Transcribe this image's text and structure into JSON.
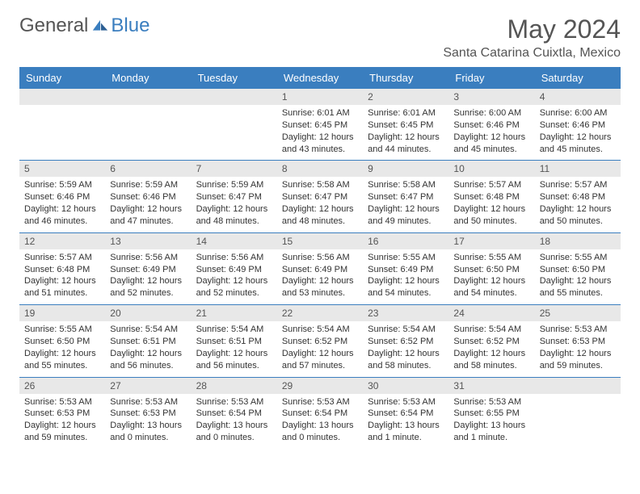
{
  "brand": {
    "part1": "General",
    "part2": "Blue"
  },
  "title": "May 2024",
  "location": "Santa Catarina Cuixtla, Mexico",
  "colors": {
    "accent": "#3a7ebf",
    "header_bg": "#3a7ebf",
    "daynum_bg": "#e8e8e8",
    "text": "#333333",
    "muted": "#555555",
    "background": "#ffffff"
  },
  "typography": {
    "base_family": "Arial",
    "title_size": 32,
    "location_size": 16,
    "header_size": 13,
    "daynum_size": 12,
    "data_size": 11
  },
  "weekdays": [
    "Sunday",
    "Monday",
    "Tuesday",
    "Wednesday",
    "Thursday",
    "Friday",
    "Saturday"
  ],
  "weeks": [
    [
      {
        "day": "",
        "sunrise": "",
        "sunset": "",
        "daylight": ""
      },
      {
        "day": "",
        "sunrise": "",
        "sunset": "",
        "daylight": ""
      },
      {
        "day": "",
        "sunrise": "",
        "sunset": "",
        "daylight": ""
      },
      {
        "day": "1",
        "sunrise": "Sunrise: 6:01 AM",
        "sunset": "Sunset: 6:45 PM",
        "daylight": "Daylight: 12 hours and 43 minutes."
      },
      {
        "day": "2",
        "sunrise": "Sunrise: 6:01 AM",
        "sunset": "Sunset: 6:45 PM",
        "daylight": "Daylight: 12 hours and 44 minutes."
      },
      {
        "day": "3",
        "sunrise": "Sunrise: 6:00 AM",
        "sunset": "Sunset: 6:46 PM",
        "daylight": "Daylight: 12 hours and 45 minutes."
      },
      {
        "day": "4",
        "sunrise": "Sunrise: 6:00 AM",
        "sunset": "Sunset: 6:46 PM",
        "daylight": "Daylight: 12 hours and 45 minutes."
      }
    ],
    [
      {
        "day": "5",
        "sunrise": "Sunrise: 5:59 AM",
        "sunset": "Sunset: 6:46 PM",
        "daylight": "Daylight: 12 hours and 46 minutes."
      },
      {
        "day": "6",
        "sunrise": "Sunrise: 5:59 AM",
        "sunset": "Sunset: 6:46 PM",
        "daylight": "Daylight: 12 hours and 47 minutes."
      },
      {
        "day": "7",
        "sunrise": "Sunrise: 5:59 AM",
        "sunset": "Sunset: 6:47 PM",
        "daylight": "Daylight: 12 hours and 48 minutes."
      },
      {
        "day": "8",
        "sunrise": "Sunrise: 5:58 AM",
        "sunset": "Sunset: 6:47 PM",
        "daylight": "Daylight: 12 hours and 48 minutes."
      },
      {
        "day": "9",
        "sunrise": "Sunrise: 5:58 AM",
        "sunset": "Sunset: 6:47 PM",
        "daylight": "Daylight: 12 hours and 49 minutes."
      },
      {
        "day": "10",
        "sunrise": "Sunrise: 5:57 AM",
        "sunset": "Sunset: 6:48 PM",
        "daylight": "Daylight: 12 hours and 50 minutes."
      },
      {
        "day": "11",
        "sunrise": "Sunrise: 5:57 AM",
        "sunset": "Sunset: 6:48 PM",
        "daylight": "Daylight: 12 hours and 50 minutes."
      }
    ],
    [
      {
        "day": "12",
        "sunrise": "Sunrise: 5:57 AM",
        "sunset": "Sunset: 6:48 PM",
        "daylight": "Daylight: 12 hours and 51 minutes."
      },
      {
        "day": "13",
        "sunrise": "Sunrise: 5:56 AM",
        "sunset": "Sunset: 6:49 PM",
        "daylight": "Daylight: 12 hours and 52 minutes."
      },
      {
        "day": "14",
        "sunrise": "Sunrise: 5:56 AM",
        "sunset": "Sunset: 6:49 PM",
        "daylight": "Daylight: 12 hours and 52 minutes."
      },
      {
        "day": "15",
        "sunrise": "Sunrise: 5:56 AM",
        "sunset": "Sunset: 6:49 PM",
        "daylight": "Daylight: 12 hours and 53 minutes."
      },
      {
        "day": "16",
        "sunrise": "Sunrise: 5:55 AM",
        "sunset": "Sunset: 6:49 PM",
        "daylight": "Daylight: 12 hours and 54 minutes."
      },
      {
        "day": "17",
        "sunrise": "Sunrise: 5:55 AM",
        "sunset": "Sunset: 6:50 PM",
        "daylight": "Daylight: 12 hours and 54 minutes."
      },
      {
        "day": "18",
        "sunrise": "Sunrise: 5:55 AM",
        "sunset": "Sunset: 6:50 PM",
        "daylight": "Daylight: 12 hours and 55 minutes."
      }
    ],
    [
      {
        "day": "19",
        "sunrise": "Sunrise: 5:55 AM",
        "sunset": "Sunset: 6:50 PM",
        "daylight": "Daylight: 12 hours and 55 minutes."
      },
      {
        "day": "20",
        "sunrise": "Sunrise: 5:54 AM",
        "sunset": "Sunset: 6:51 PM",
        "daylight": "Daylight: 12 hours and 56 minutes."
      },
      {
        "day": "21",
        "sunrise": "Sunrise: 5:54 AM",
        "sunset": "Sunset: 6:51 PM",
        "daylight": "Daylight: 12 hours and 56 minutes."
      },
      {
        "day": "22",
        "sunrise": "Sunrise: 5:54 AM",
        "sunset": "Sunset: 6:52 PM",
        "daylight": "Daylight: 12 hours and 57 minutes."
      },
      {
        "day": "23",
        "sunrise": "Sunrise: 5:54 AM",
        "sunset": "Sunset: 6:52 PM",
        "daylight": "Daylight: 12 hours and 58 minutes."
      },
      {
        "day": "24",
        "sunrise": "Sunrise: 5:54 AM",
        "sunset": "Sunset: 6:52 PM",
        "daylight": "Daylight: 12 hours and 58 minutes."
      },
      {
        "day": "25",
        "sunrise": "Sunrise: 5:53 AM",
        "sunset": "Sunset: 6:53 PM",
        "daylight": "Daylight: 12 hours and 59 minutes."
      }
    ],
    [
      {
        "day": "26",
        "sunrise": "Sunrise: 5:53 AM",
        "sunset": "Sunset: 6:53 PM",
        "daylight": "Daylight: 12 hours and 59 minutes."
      },
      {
        "day": "27",
        "sunrise": "Sunrise: 5:53 AM",
        "sunset": "Sunset: 6:53 PM",
        "daylight": "Daylight: 13 hours and 0 minutes."
      },
      {
        "day": "28",
        "sunrise": "Sunrise: 5:53 AM",
        "sunset": "Sunset: 6:54 PM",
        "daylight": "Daylight: 13 hours and 0 minutes."
      },
      {
        "day": "29",
        "sunrise": "Sunrise: 5:53 AM",
        "sunset": "Sunset: 6:54 PM",
        "daylight": "Daylight: 13 hours and 0 minutes."
      },
      {
        "day": "30",
        "sunrise": "Sunrise: 5:53 AM",
        "sunset": "Sunset: 6:54 PM",
        "daylight": "Daylight: 13 hours and 1 minute."
      },
      {
        "day": "31",
        "sunrise": "Sunrise: 5:53 AM",
        "sunset": "Sunset: 6:55 PM",
        "daylight": "Daylight: 13 hours and 1 minute."
      },
      {
        "day": "",
        "sunrise": "",
        "sunset": "",
        "daylight": ""
      }
    ]
  ]
}
